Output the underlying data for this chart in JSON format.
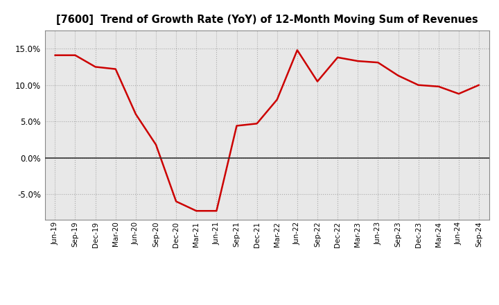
{
  "title": "[7600]  Trend of Growth Rate (YoY) of 12-Month Moving Sum of Revenues",
  "line_color": "#CC0000",
  "background_color": "#FFFFFF",
  "plot_bg_color": "#E8E8E8",
  "grid_color": "#AAAAAA",
  "ylim": [
    -0.085,
    0.175
  ],
  "yticks": [
    -0.05,
    0.0,
    0.05,
    0.1,
    0.15
  ],
  "labels": [
    "Jun-19",
    "Sep-19",
    "Dec-19",
    "Mar-20",
    "Jun-20",
    "Sep-20",
    "Dec-20",
    "Mar-21",
    "Jun-21",
    "Sep-21",
    "Dec-21",
    "Mar-22",
    "Jun-22",
    "Sep-22",
    "Dec-22",
    "Mar-23",
    "Jun-23",
    "Sep-23",
    "Dec-23",
    "Mar-24",
    "Jun-24",
    "Sep-24"
  ],
  "values": [
    0.141,
    0.141,
    0.125,
    0.122,
    0.06,
    0.018,
    -0.06,
    -0.073,
    -0.073,
    0.044,
    0.047,
    0.08,
    0.148,
    0.105,
    0.138,
    0.133,
    0.131,
    0.113,
    0.1,
    0.098,
    0.088,
    0.1
  ]
}
